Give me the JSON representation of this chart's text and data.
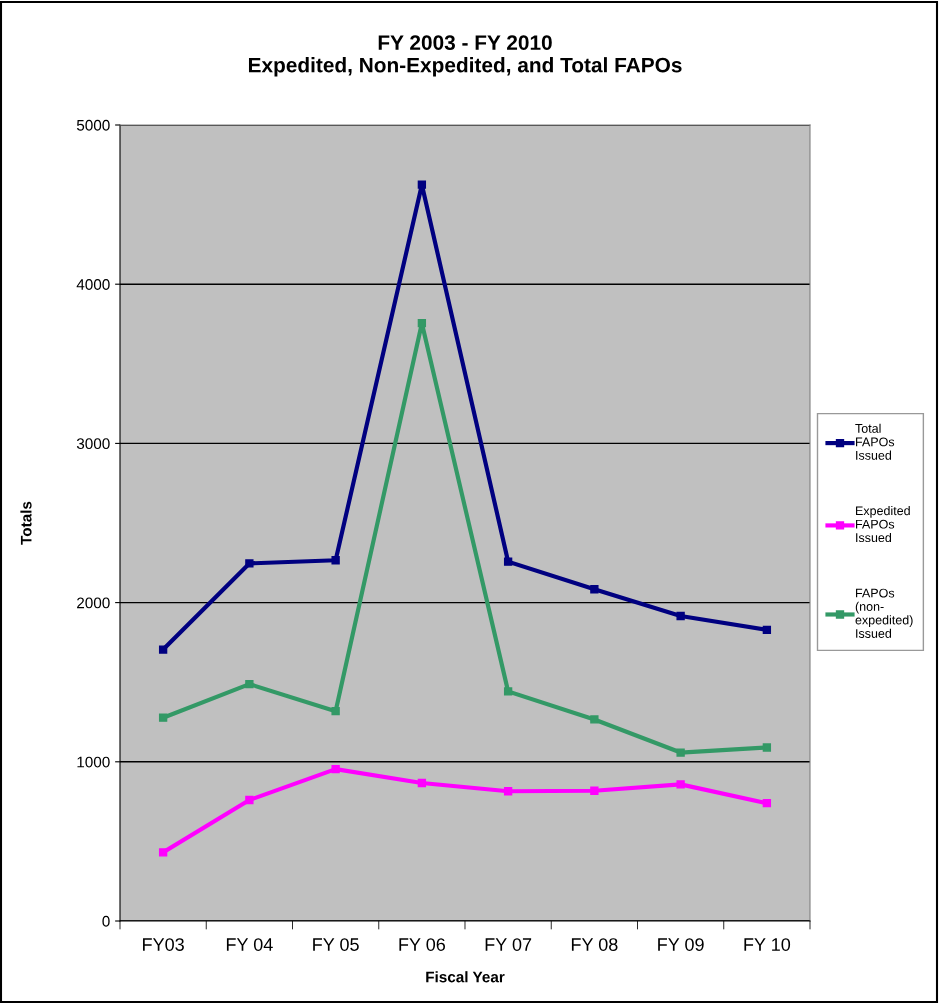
{
  "chart_data": {
    "type": "line",
    "title": "FY 2003 - FY 2010\nExpedited, Non-Expedited, and Total FAPOs",
    "xlabel": "Fiscal Year",
    "ylabel": "Totals",
    "categories": [
      "FY03",
      "FY 04",
      "FY 05",
      "FY 06",
      "FY 07",
      "FY 08",
      "FY 09",
      "FY 10"
    ],
    "series": [
      {
        "name": "Total\nFAPOs\nIssued",
        "color": "#000080",
        "values": [
          1705,
          2246,
          2266,
          4625,
          2257,
          2084,
          1916,
          1829
        ]
      },
      {
        "name": "Expedited\nFAPOs\nIssued",
        "color": "#ff00ff",
        "values": [
          431,
          760,
          954,
          867,
          815,
          818,
          858,
          740
        ]
      },
      {
        "name": "FAPOs\n(non-\nexpedited)\nIssued",
        "color": "#339966",
        "values": [
          1277,
          1488,
          1318,
          3755,
          1442,
          1266,
          1058,
          1090
        ]
      }
    ],
    "ylim": [
      0,
      5000
    ],
    "yticks": [
      0,
      1000,
      2000,
      3000,
      4000,
      5000
    ],
    "grid": "y",
    "legend": "right",
    "marker": "square",
    "line_style": "solid"
  }
}
